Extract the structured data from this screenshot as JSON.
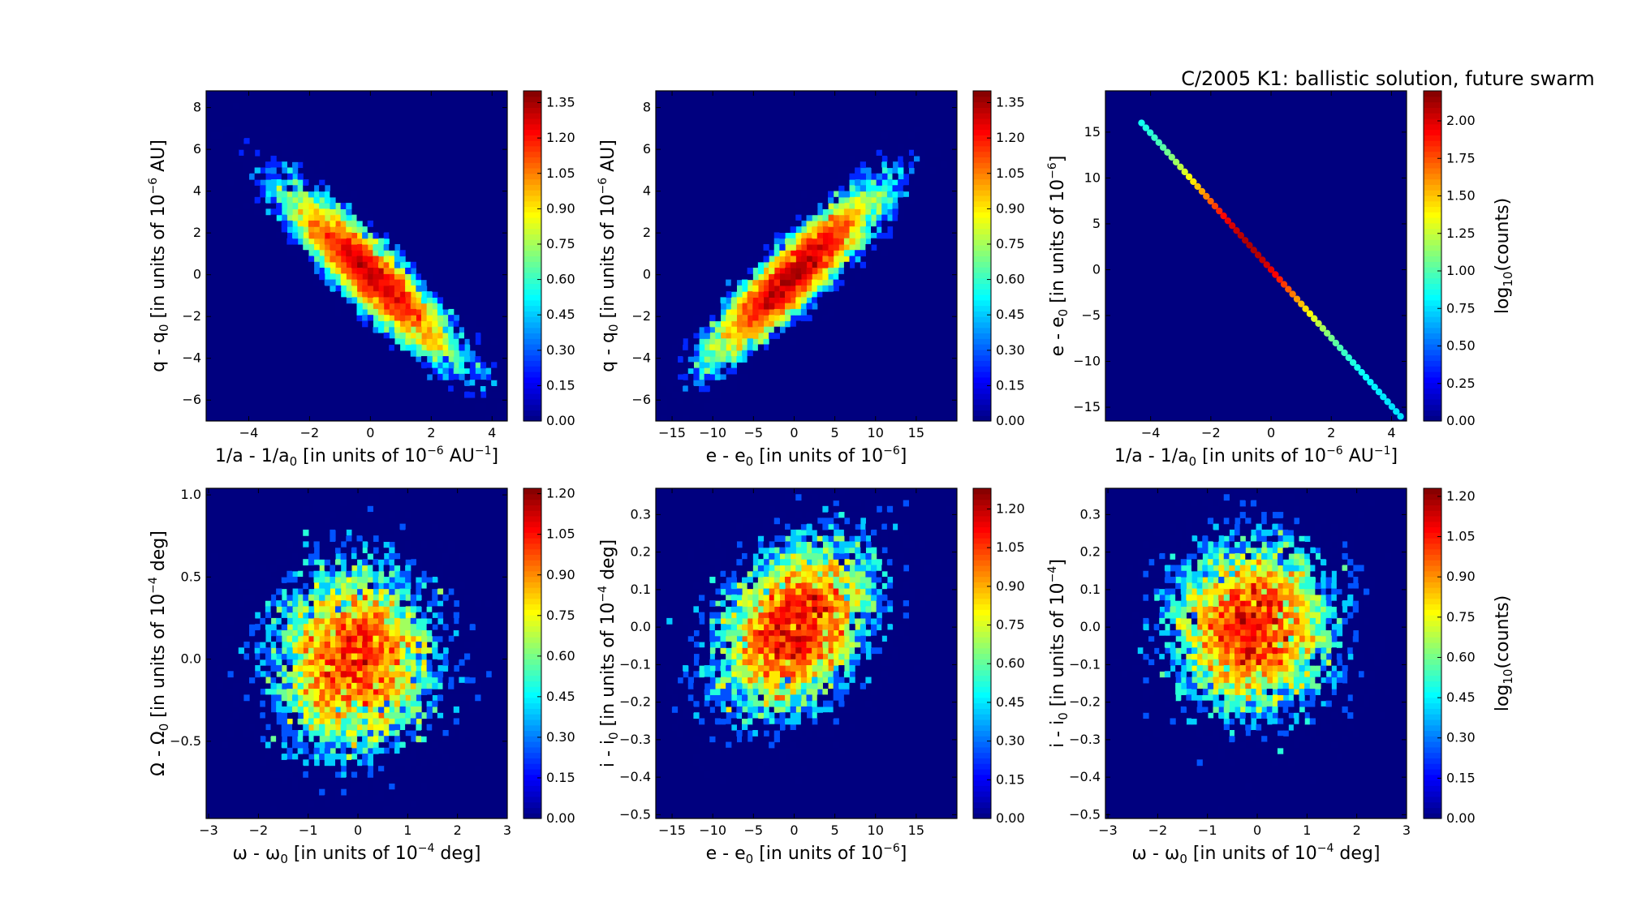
{
  "title": "C/2005 K1:  ballistic solution, future swarm",
  "colors": {
    "background": "#00007f",
    "figure": "#ffffff",
    "frame": "#000000"
  },
  "chart_data": [
    {
      "type": "heatmap",
      "panel": "top-left",
      "xlabel": "1/a - 1/a0 [in units of 10^-6 AU^-1]",
      "xlabel_parts": {
        "base": "1/a - 1/a",
        "sub0": "0",
        "pre": " [in units of 10",
        "exp": "−6",
        "mid": " AU",
        "exp2": "−1",
        "post": "]"
      },
      "ylabel": "q - q0 [in units of 10^-6 AU]",
      "ylabel_parts": {
        "base": "q - q",
        "sub0": "0",
        "pre": " [in units of 10",
        "exp": "−6",
        "post": " AU]"
      },
      "xlim": [
        -5.4,
        4.5
      ],
      "ylim": [
        -7.0,
        8.8
      ],
      "xticks": [
        -4,
        -2,
        0,
        2,
        4
      ],
      "xtick_labels": [
        "−4",
        "−2",
        "0",
        "2",
        "4"
      ],
      "yticks": [
        -6,
        -4,
        -2,
        0,
        2,
        4,
        6,
        8
      ],
      "ytick_labels": [
        "−6",
        "−4",
        "−2",
        "0",
        "2",
        "4",
        "6",
        "8"
      ],
      "density": {
        "center_x": 0,
        "center_y": 0,
        "sigma_x": 1.4,
        "sigma_y": 2.0,
        "correlation": -0.9,
        "samples": 9000,
        "grid": 56
      },
      "colorbar": {
        "max": 1.4,
        "ticks": [
          0.0,
          0.15,
          0.3,
          0.45,
          0.6,
          0.75,
          0.9,
          1.05,
          1.2,
          1.35
        ],
        "tick_labels": [
          "0.00",
          "0.15",
          "0.30",
          "0.45",
          "0.60",
          "0.75",
          "0.90",
          "1.05",
          "1.20",
          "1.35"
        ]
      },
      "colorbar_label": ""
    },
    {
      "type": "heatmap",
      "panel": "top-middle",
      "xlabel": "e - e0 [in units of 10^-6]",
      "xlabel_parts": {
        "base": "e - e",
        "sub0": "0",
        "pre": " [in units of 10",
        "exp": "−6",
        "post": "]"
      },
      "ylabel": "q - q0 [in units of 10^-6 AU]",
      "ylabel_parts": {
        "base": "q - q",
        "sub0": "0",
        "pre": " [in units of 10",
        "exp": "−6",
        "post": " AU]"
      },
      "xlim": [
        -17,
        20
      ],
      "ylim": [
        -7.0,
        8.8
      ],
      "xticks": [
        -15,
        -10,
        -5,
        0,
        5,
        10,
        15
      ],
      "xtick_labels": [
        "−15",
        "−10",
        "−5",
        "0",
        "5",
        "10",
        "15"
      ],
      "yticks": [
        -6,
        -4,
        -2,
        0,
        2,
        4,
        6,
        8
      ],
      "ytick_labels": [
        "−6",
        "−4",
        "−2",
        "0",
        "2",
        "4",
        "6",
        "8"
      ],
      "density": {
        "center_x": 0,
        "center_y": 0,
        "sigma_x": 5.2,
        "sigma_y": 2.0,
        "correlation": 0.9,
        "samples": 9000,
        "grid": 56
      },
      "colorbar": {
        "max": 1.4,
        "ticks": [
          0.0,
          0.15,
          0.3,
          0.45,
          0.6,
          0.75,
          0.9,
          1.05,
          1.2,
          1.35
        ],
        "tick_labels": [
          "0.00",
          "0.15",
          "0.30",
          "0.45",
          "0.60",
          "0.75",
          "0.90",
          "1.05",
          "1.20",
          "1.35"
        ]
      },
      "colorbar_label": ""
    },
    {
      "type": "heatmap",
      "panel": "top-right",
      "xlabel": "1/a - 1/a0 [in units of 10^-6 AU^-1]",
      "xlabel_parts": {
        "base": "1/a - 1/a",
        "sub0": "0",
        "pre": " [in units of 10",
        "exp": "−6",
        "mid": " AU",
        "exp2": "−1",
        "post": "]"
      },
      "ylabel": "e - e0 [in units of 10^-6]",
      "ylabel_parts": {
        "base": "e - e",
        "sub0": "0",
        "pre": " [in units of 10",
        "exp": "−6",
        "post": "]"
      },
      "xlim": [
        -5.5,
        4.5
      ],
      "ylim": [
        -16.5,
        19.5
      ],
      "xticks": [
        -4,
        -2,
        0,
        2,
        4
      ],
      "xtick_labels": [
        "−4",
        "−2",
        "0",
        "2",
        "4"
      ],
      "yticks": [
        -15,
        -10,
        -5,
        0,
        5,
        10,
        15
      ],
      "ytick_labels": [
        "−15",
        "−10",
        "−5",
        "0",
        "5",
        "10",
        "15"
      ],
      "line_density": {
        "x_start": -4.3,
        "y_start": 16,
        "x_end": 4.3,
        "y_end": -16,
        "peak_x": -0.7,
        "sigma": 1.6,
        "points": 60
      },
      "colorbar": {
        "max": 2.2,
        "ticks": [
          0.0,
          0.25,
          0.5,
          0.75,
          1.0,
          1.25,
          1.5,
          1.75,
          2.0
        ],
        "tick_labels": [
          "0.00",
          "0.25",
          "0.50",
          "0.75",
          "1.00",
          "1.25",
          "1.50",
          "1.75",
          "2.00"
        ]
      },
      "colorbar_label": "log10(counts)",
      "colorbar_label_parts": {
        "base": "log",
        "sub": "10",
        "post": "(counts)"
      }
    },
    {
      "type": "heatmap",
      "panel": "bottom-left",
      "xlabel": "ω - ω0 [in units of 10^-4 deg]",
      "xlabel_parts": {
        "base": "ω - ω",
        "sub0": "0",
        "pre": " [in units of 10",
        "exp": "−4",
        "post": " deg]"
      },
      "ylabel": "Ω - Ω0 [in units of 10^-4 deg]",
      "ylabel_parts": {
        "base": "Ω - Ω",
        "sub0": "0",
        "pre": " [in units of 10",
        "exp": "−4",
        "post": " deg]"
      },
      "xlim": [
        -3.05,
        3.0
      ],
      "ylim": [
        -0.97,
        1.04
      ],
      "xticks": [
        -3,
        -2,
        -1,
        0,
        1,
        2,
        3
      ],
      "xtick_labels": [
        "−3",
        "−2",
        "−1",
        "0",
        "1",
        "2",
        "3"
      ],
      "yticks": [
        -0.5,
        0.0,
        0.5,
        1.0
      ],
      "ytick_labels": [
        "−0.5",
        "0.0",
        "0.5",
        "1.0"
      ],
      "density": {
        "center_x": -0.1,
        "center_y": 0.0,
        "sigma_x": 0.85,
        "sigma_y": 0.3,
        "correlation": 0.05,
        "samples": 7000,
        "grid": 56
      },
      "colorbar": {
        "max": 1.22,
        "ticks": [
          0.0,
          0.15,
          0.3,
          0.45,
          0.6,
          0.75,
          0.9,
          1.05,
          1.2
        ],
        "tick_labels": [
          "0.00",
          "0.15",
          "0.30",
          "0.45",
          "0.60",
          "0.75",
          "0.90",
          "1.05",
          "1.20"
        ]
      },
      "colorbar_label": ""
    },
    {
      "type": "heatmap",
      "panel": "bottom-middle",
      "xlabel": "e - e0 [in units of 10^-6]",
      "xlabel_parts": {
        "base": "e - e",
        "sub0": "0",
        "pre": " [in units of 10",
        "exp": "−6",
        "post": "]"
      },
      "ylabel": "i - i0 [in units of 10^-4 deg]",
      "ylabel_parts": {
        "base": "i - i",
        "sub0": "0",
        "pre": " [in units of 10",
        "exp": "−4",
        "post": " deg]"
      },
      "xlim": [
        -17,
        20
      ],
      "ylim": [
        -0.51,
        0.37
      ],
      "xticks": [
        -15,
        -10,
        -5,
        0,
        5,
        10,
        15
      ],
      "xtick_labels": [
        "−15",
        "−10",
        "−5",
        "0",
        "5",
        "10",
        "15"
      ],
      "yticks": [
        -0.5,
        -0.4,
        -0.3,
        -0.2,
        -0.1,
        0.0,
        0.1,
        0.2,
        0.3
      ],
      "ytick_labels": [
        "−0.5",
        "−0.4",
        "−0.3",
        "−0.2",
        "−0.1",
        "0.0",
        "0.1",
        "0.2",
        "0.3"
      ],
      "density": {
        "center_x": 0,
        "center_y": 0.0,
        "sigma_x": 5.0,
        "sigma_y": 0.12,
        "correlation": 0.35,
        "samples": 7000,
        "grid": 56
      },
      "colorbar": {
        "max": 1.28,
        "ticks": [
          0.0,
          0.15,
          0.3,
          0.45,
          0.6,
          0.75,
          0.9,
          1.05,
          1.2
        ],
        "tick_labels": [
          "0.00",
          "0.15",
          "0.30",
          "0.45",
          "0.60",
          "0.75",
          "0.90",
          "1.05",
          "1.20"
        ]
      },
      "colorbar_label": ""
    },
    {
      "type": "heatmap",
      "panel": "bottom-right",
      "xlabel": "ω - ω0 [in units of 10^-4 deg]",
      "xlabel_parts": {
        "base": "ω - ω",
        "sub0": "0",
        "pre": " [in units of 10",
        "exp": "−4",
        "post": " deg]"
      },
      "ylabel": "i - i0 [in units of 10^-4]",
      "ylabel_parts": {
        "base": "i - i",
        "sub0": "0",
        "pre": " [in units of 10",
        "exp": "−4",
        "post": "]"
      },
      "xlim": [
        -3.05,
        3.0
      ],
      "ylim": [
        -0.51,
        0.37
      ],
      "xticks": [
        -3,
        -2,
        -1,
        0,
        1,
        2,
        3
      ],
      "xtick_labels": [
        "−3",
        "−2",
        "−1",
        "0",
        "1",
        "2",
        "3"
      ],
      "yticks": [
        -0.5,
        -0.4,
        -0.3,
        -0.2,
        -0.1,
        0.0,
        0.1,
        0.2,
        0.3
      ],
      "ytick_labels": [
        "−0.5",
        "−0.4",
        "−0.3",
        "−0.2",
        "−0.1",
        "0.0",
        "0.1",
        "0.2",
        "0.3"
      ],
      "density": {
        "center_x": -0.1,
        "center_y": 0.0,
        "sigma_x": 0.85,
        "sigma_y": 0.12,
        "correlation": 0.0,
        "samples": 7000,
        "grid": 56
      },
      "colorbar": {
        "max": 1.23,
        "ticks": [
          0.0,
          0.15,
          0.3,
          0.45,
          0.6,
          0.75,
          0.9,
          1.05,
          1.2
        ],
        "tick_labels": [
          "0.00",
          "0.15",
          "0.30",
          "0.45",
          "0.60",
          "0.75",
          "0.90",
          "1.05",
          "1.20"
        ]
      },
      "colorbar_label": "log10(counts)",
      "colorbar_label_parts": {
        "base": "log",
        "sub": "10",
        "post": "(counts)"
      }
    }
  ]
}
